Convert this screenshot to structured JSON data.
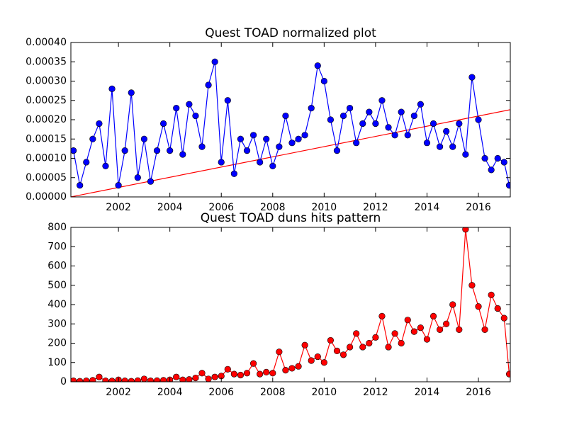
{
  "chart_data": [
    {
      "type": "line",
      "title": "Quest TOAD normalized plot",
      "x": [
        2000.25,
        2000.5,
        2000.75,
        2001.0,
        2001.25,
        2001.5,
        2001.75,
        2002.0,
        2002.25,
        2002.5,
        2002.75,
        2003.0,
        2003.25,
        2003.5,
        2003.75,
        2004.0,
        2004.25,
        2004.5,
        2004.75,
        2005.0,
        2005.25,
        2005.5,
        2005.75,
        2006.0,
        2006.25,
        2006.5,
        2006.75,
        2007.0,
        2007.25,
        2007.5,
        2007.75,
        2008.0,
        2008.25,
        2008.5,
        2008.75,
        2009.0,
        2009.25,
        2009.5,
        2009.75,
        2010.0,
        2010.25,
        2010.5,
        2010.75,
        2011.0,
        2011.25,
        2011.5,
        2011.75,
        2012.0,
        2012.25,
        2012.5,
        2012.75,
        2013.0,
        2013.25,
        2013.5,
        2013.75,
        2014.0,
        2014.25,
        2014.5,
        2014.75,
        2015.0,
        2015.25,
        2015.5,
        2015.75,
        2016.0,
        2016.25,
        2016.5,
        2016.75,
        2017.0,
        2017.2
      ],
      "series": [
        {
          "color": "#0000ff",
          "values": [
            0.00012,
            3e-05,
            9e-05,
            0.00015,
            0.00019,
            8e-05,
            0.00028,
            3e-05,
            0.00012,
            0.00027,
            5e-05,
            0.00015,
            4e-05,
            0.00012,
            0.00019,
            0.00012,
            0.00023,
            0.00011,
            0.00024,
            0.00021,
            0.00013,
            0.00029,
            0.00035,
            9e-05,
            0.00025,
            6e-05,
            0.00015,
            0.00012,
            0.00016,
            9e-05,
            0.00015,
            8e-05,
            0.00013,
            0.00021,
            0.00014,
            0.00015,
            0.00016,
            0.00023,
            0.00034,
            0.0003,
            0.0002,
            0.00012,
            0.00021,
            0.00023,
            0.00014,
            0.00019,
            0.00022,
            0.00019,
            0.00025,
            0.00018,
            0.00016,
            0.00022,
            0.00016,
            0.00021,
            0.00024,
            0.00014,
            0.00019,
            0.00013,
            0.00017,
            0.00013,
            0.00019,
            0.00011,
            0.00031,
            0.0002,
            0.0001,
            7e-05,
            0.0001,
            9e-05,
            3e-05
          ]
        }
      ],
      "trend_line": {
        "color": "#ff0000",
        "x": [
          2000.15,
          2017.24
        ],
        "values": [
          0,
          0.000226
        ]
      },
      "xlim": [
        2000.15,
        2017.24
      ],
      "xticks": [
        2002,
        2004,
        2006,
        2008,
        2010,
        2012,
        2014,
        2016
      ],
      "ylim": [
        0,
        0.0004
      ],
      "yticks": [
        {
          "value": 0,
          "label": "0.00000"
        },
        {
          "value": 5e-05,
          "label": "0.00005"
        },
        {
          "value": 0.0001,
          "label": "0.00010"
        },
        {
          "value": 0.00015,
          "label": "0.00015"
        },
        {
          "value": 0.0002,
          "label": "0.00020"
        },
        {
          "value": 0.00025,
          "label": "0.00025"
        },
        {
          "value": 0.0003,
          "label": "0.00030"
        },
        {
          "value": 0.00035,
          "label": "0.00035"
        },
        {
          "value": 0.0004,
          "label": "0.00040"
        }
      ]
    },
    {
      "type": "line",
      "title": "Quest TOAD duns hits pattern",
      "x": [
        2000.25,
        2000.5,
        2000.75,
        2001.0,
        2001.25,
        2001.5,
        2001.75,
        2002.0,
        2002.25,
        2002.5,
        2002.75,
        2003.0,
        2003.25,
        2003.5,
        2003.75,
        2004.0,
        2004.25,
        2004.5,
        2004.75,
        2005.0,
        2005.25,
        2005.5,
        2005.75,
        2006.0,
        2006.25,
        2006.5,
        2006.75,
        2007.0,
        2007.25,
        2007.5,
        2007.75,
        2008.0,
        2008.25,
        2008.5,
        2008.75,
        2009.0,
        2009.25,
        2009.5,
        2009.75,
        2010.0,
        2010.25,
        2010.5,
        2010.75,
        2011.0,
        2011.25,
        2011.5,
        2011.75,
        2012.0,
        2012.25,
        2012.5,
        2012.75,
        2013.0,
        2013.25,
        2013.5,
        2013.75,
        2014.0,
        2014.25,
        2014.5,
        2014.75,
        2015.0,
        2015.25,
        2015.5,
        2015.75,
        2016.0,
        2016.25,
        2016.5,
        2016.75,
        2017.0,
        2017.2
      ],
      "series": [
        {
          "color": "#ff0000",
          "values": [
            5,
            3,
            5,
            8,
            25,
            5,
            4,
            10,
            5,
            3,
            6,
            15,
            5,
            6,
            8,
            10,
            25,
            10,
            12,
            20,
            45,
            15,
            25,
            30,
            65,
            40,
            35,
            45,
            95,
            40,
            50,
            45,
            155,
            60,
            70,
            80,
            190,
            110,
            130,
            100,
            215,
            160,
            140,
            180,
            250,
            180,
            200,
            230,
            340,
            180,
            250,
            200,
            320,
            260,
            280,
            220,
            340,
            270,
            300,
            400,
            270,
            790,
            500,
            390,
            270,
            450,
            380,
            330,
            40
          ]
        }
      ],
      "xlim": [
        2000.15,
        2017.24
      ],
      "xticks": [
        2002,
        2004,
        2006,
        2008,
        2010,
        2012,
        2014,
        2016
      ],
      "ylim": [
        0,
        800
      ],
      "yticks": [
        0,
        100,
        200,
        300,
        400,
        500,
        600,
        700,
        800
      ]
    }
  ]
}
